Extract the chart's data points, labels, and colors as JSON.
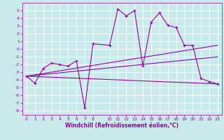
{
  "xlabel": "Windchill (Refroidissement éolien,°C)",
  "bg_color": "#c8eaea",
  "line_color": "#990099",
  "grid_color": "#ffffff",
  "xlim": [
    -0.5,
    23.5
  ],
  "ylim": [
    -8.5,
    6.0
  ],
  "xticks": [
    0,
    1,
    2,
    3,
    4,
    5,
    6,
    7,
    8,
    10,
    11,
    12,
    13,
    14,
    15,
    16,
    17,
    18,
    19,
    20,
    21,
    22,
    23
  ],
  "yticks": [
    -8,
    -7,
    -6,
    -5,
    -4,
    -3,
    -2,
    -1,
    0,
    1,
    2,
    3,
    4,
    5
  ],
  "series": [
    [
      0,
      -3.5
    ],
    [
      1,
      -4.4
    ],
    [
      2,
      -2.5
    ],
    [
      3,
      -1.8
    ],
    [
      4,
      -2.0
    ],
    [
      5,
      -2.2
    ],
    [
      6,
      -1.5
    ],
    [
      7,
      -7.6
    ],
    [
      8,
      0.7
    ],
    [
      10,
      0.5
    ],
    [
      11,
      5.2
    ],
    [
      12,
      4.3
    ],
    [
      13,
      5.0
    ],
    [
      14,
      -2.2
    ],
    [
      15,
      3.5
    ],
    [
      16,
      4.7
    ],
    [
      17,
      3.1
    ],
    [
      18,
      2.8
    ],
    [
      19,
      0.5
    ],
    [
      20,
      0.5
    ],
    [
      21,
      -3.8
    ],
    [
      22,
      -4.2
    ],
    [
      23,
      -4.5
    ]
  ],
  "line2": [
    [
      0,
      -3.5
    ],
    [
      23,
      -4.5
    ]
  ],
  "line3": [
    [
      0,
      -3.5
    ],
    [
      23,
      -1.0
    ]
  ],
  "line4": [
    [
      0,
      -3.5
    ],
    [
      23,
      0.5
    ]
  ],
  "tick_fontsize": 4.5,
  "xlabel_fontsize": 5.5
}
